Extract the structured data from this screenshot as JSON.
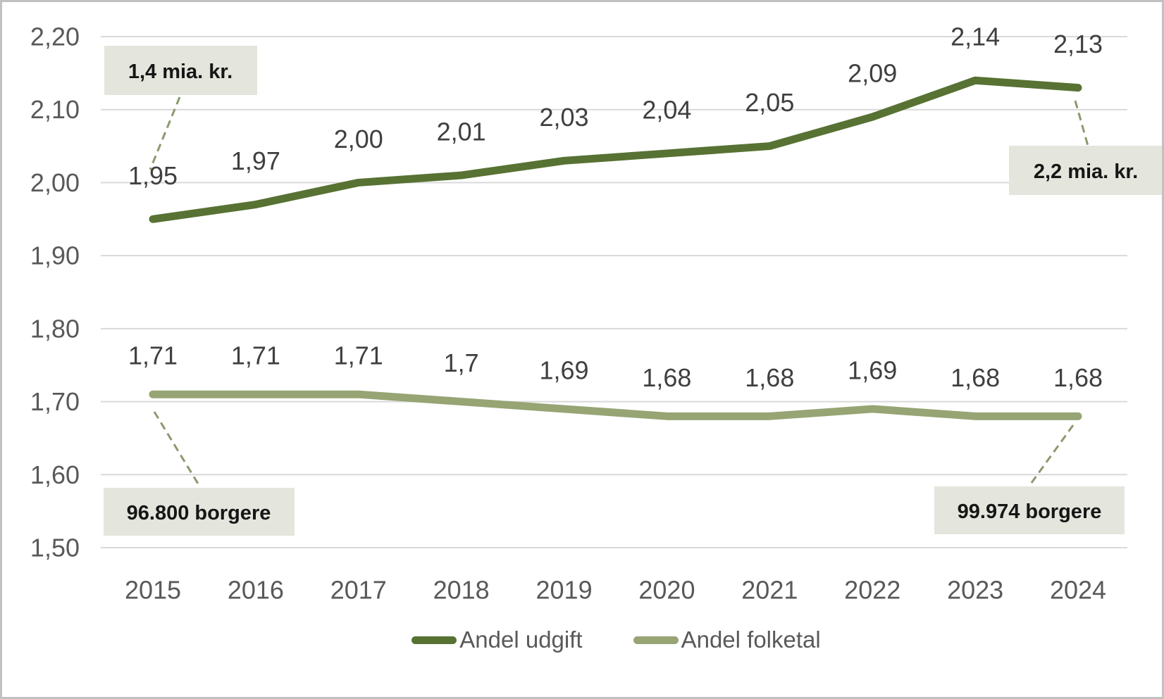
{
  "chart_data": {
    "type": "line",
    "categories": [
      "2015",
      "2016",
      "2017",
      "2018",
      "2019",
      "2020",
      "2021",
      "2022",
      "2023",
      "2024"
    ],
    "series": [
      {
        "name": "Andel udgift",
        "color": "#577233",
        "values": [
          1.95,
          1.97,
          2.0,
          2.01,
          2.03,
          2.04,
          2.05,
          2.09,
          2.14,
          2.13
        ],
        "labels": [
          "1,95",
          "1,97",
          "2,00",
          "2,01",
          "2,03",
          "2,04",
          "2,05",
          "2,09",
          "2,14",
          "2,13"
        ]
      },
      {
        "name": "Andel folketal",
        "color": "#97A474",
        "values": [
          1.71,
          1.71,
          1.71,
          1.7,
          1.69,
          1.68,
          1.68,
          1.69,
          1.68,
          1.68
        ],
        "labels": [
          "1,71",
          "1,71",
          "1,71",
          "1,7",
          "1,69",
          "1,68",
          "1,68",
          "1,69",
          "1,68",
          "1,68"
        ]
      }
    ],
    "ylim": [
      1.5,
      2.2
    ],
    "ytick_step": 0.1,
    "ytick_labels": [
      "1,50",
      "1,60",
      "1,70",
      "1,80",
      "1,90",
      "2,00",
      "2,10",
      "2,20"
    ],
    "grid": true,
    "legend_position": "bottom",
    "annotations": [
      {
        "id": "start-expense",
        "text": "1,4 mia. kr."
      },
      {
        "id": "end-expense",
        "text": "2,2 mia. kr."
      },
      {
        "id": "start-population",
        "text": "96.800 borgere"
      },
      {
        "id": "end-population",
        "text": "99.974 borgere"
      }
    ]
  },
  "colors": {
    "gridline": "#d9d9d9",
    "axis_text": "#595959",
    "data_label_text": "#3f3f3f",
    "callout_bg": "#e4e5dc",
    "callout_text": "#161616",
    "connector": "#8b9a6d",
    "frame_border": "#c1c1c1",
    "series_dark": "#577233",
    "series_light": "#97A474"
  }
}
